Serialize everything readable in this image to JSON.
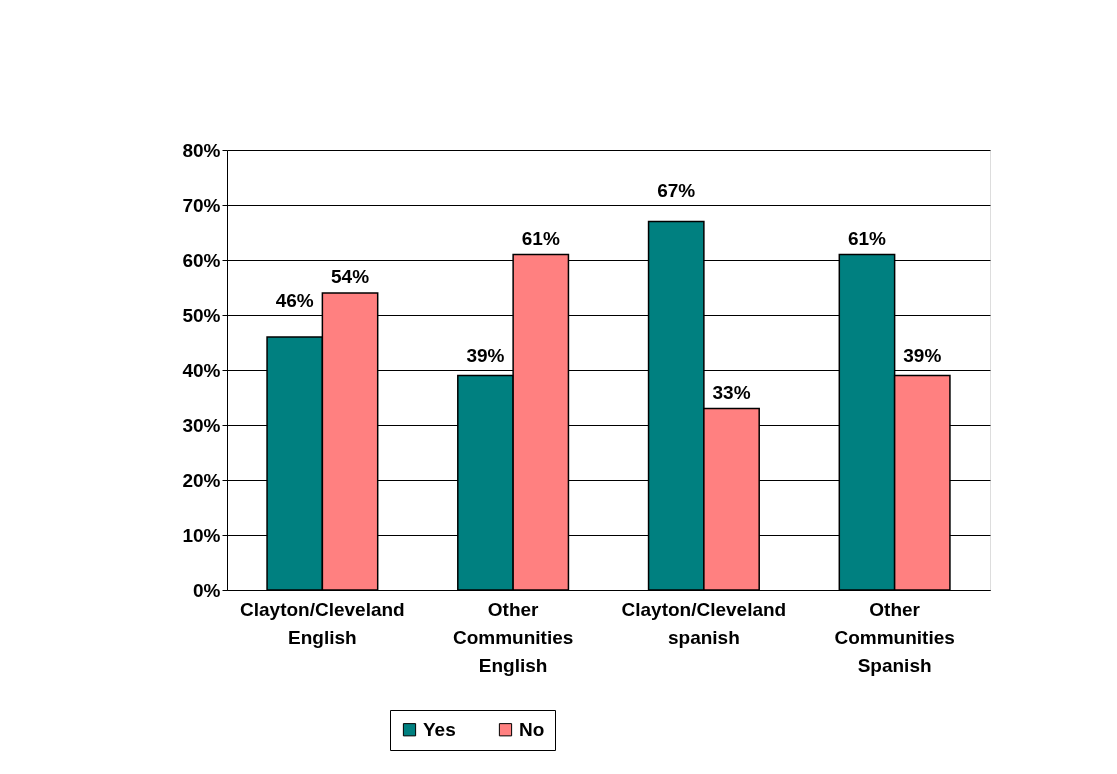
{
  "chart_data": {
    "type": "bar",
    "categories": [
      "Clayton/Cleveland English",
      "Other Communities English",
      "Clayton/Cleveland spanish",
      "Other Communities Spanish"
    ],
    "series": [
      {
        "name": "Yes",
        "color": "#008080",
        "values": [
          46,
          39,
          67,
          61
        ],
        "value_labels": [
          "46%",
          "39%",
          "67%",
          "61%"
        ]
      },
      {
        "name": "No",
        "color": "#ff8080",
        "values": [
          54,
          61,
          33,
          39
        ],
        "value_labels": [
          "54%",
          "61%",
          "33%",
          "39%"
        ]
      }
    ],
    "ylim": [
      0,
      80
    ],
    "yticks": [
      {
        "value": 0,
        "label": "0%"
      },
      {
        "value": 10,
        "label": "10%"
      },
      {
        "value": 20,
        "label": "20%"
      },
      {
        "value": 30,
        "label": "30%"
      },
      {
        "value": 40,
        "label": "40%"
      },
      {
        "value": 50,
        "label": "50%"
      },
      {
        "value": 60,
        "label": "60%"
      },
      {
        "value": 70,
        "label": "70%"
      },
      {
        "value": 80,
        "label": "80%"
      }
    ],
    "grid": "y",
    "legend": "bottom"
  }
}
